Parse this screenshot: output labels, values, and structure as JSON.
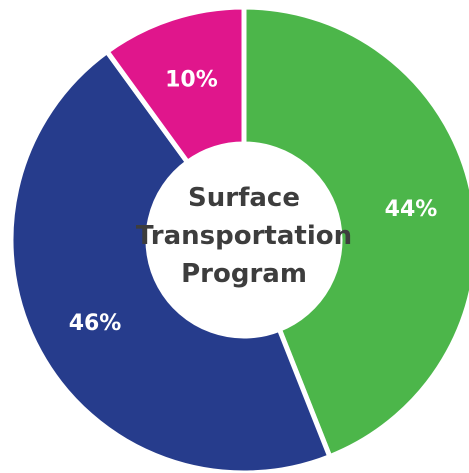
{
  "chart_data": {
    "type": "pie",
    "style": "donut",
    "title": "Surface Transportation Program",
    "center_label_lines": [
      "Surface",
      "Transportation",
      "Program"
    ],
    "slices": [
      {
        "value": 44,
        "label": "44%",
        "color": "#4cb64a"
      },
      {
        "value": 46,
        "label": "46%",
        "color": "#263c8c"
      },
      {
        "value": 10,
        "label": "10%",
        "color": "#e0168c"
      }
    ],
    "start_angle_deg": 0,
    "direction": "clockwise",
    "separator_color": "#ffffff",
    "legend": "none"
  }
}
